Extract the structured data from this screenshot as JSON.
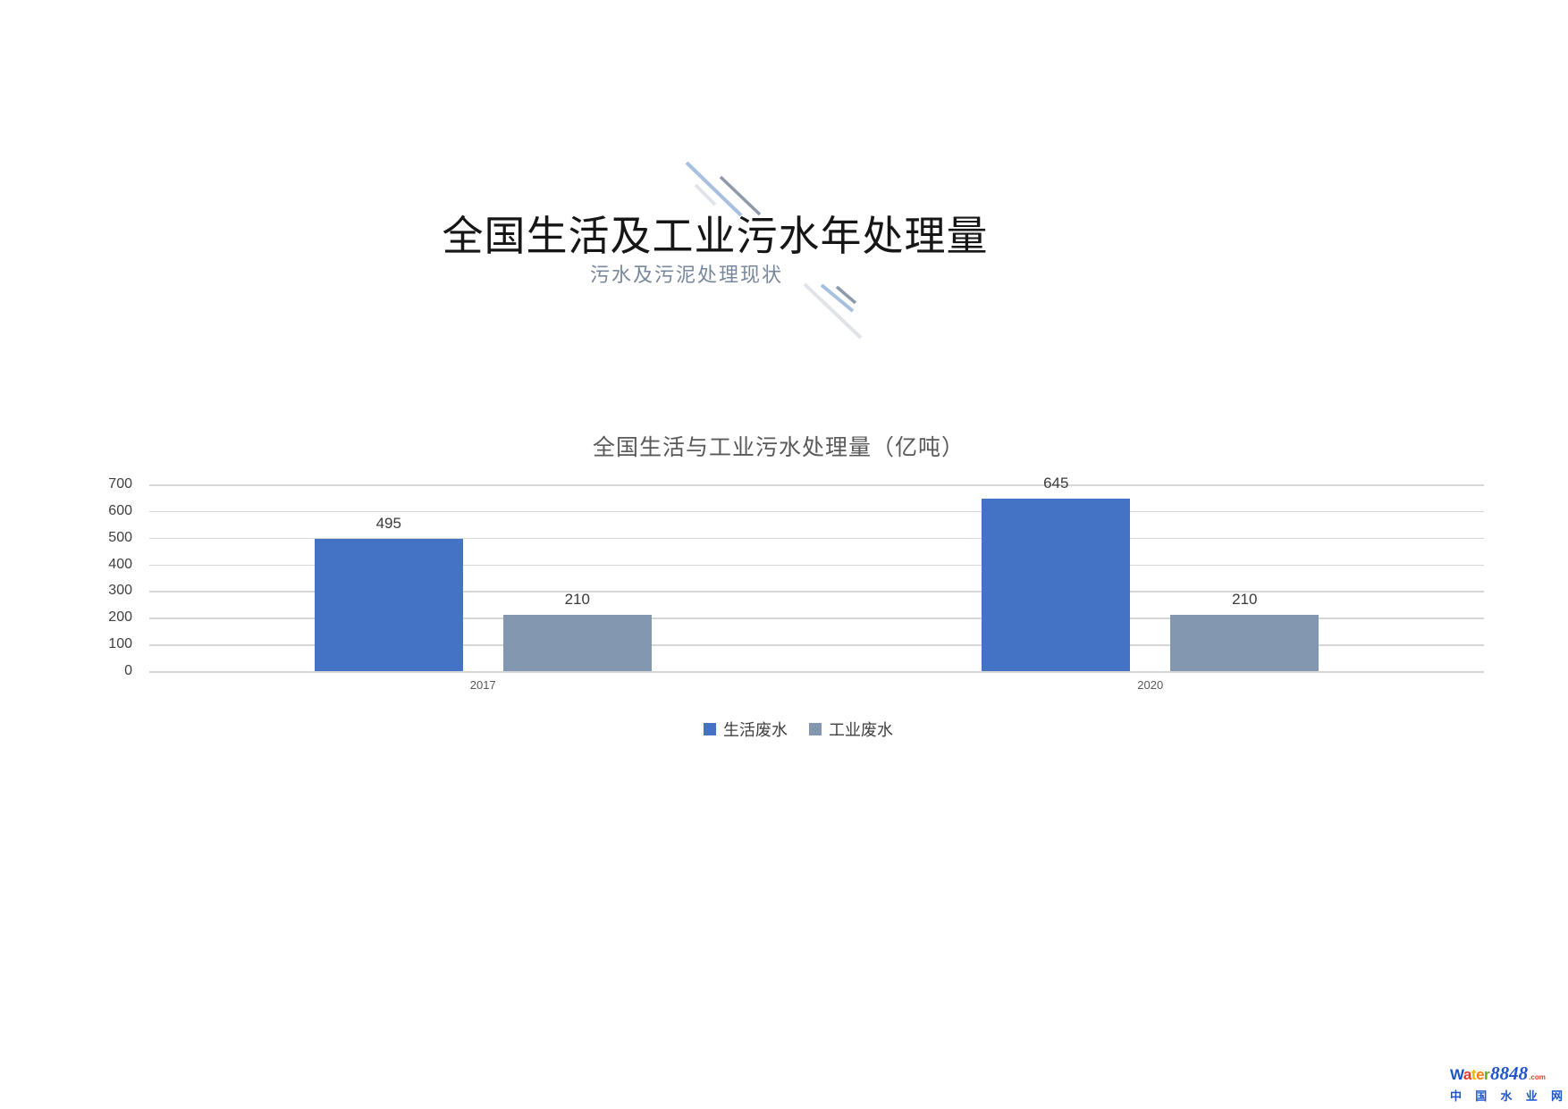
{
  "slide": {
    "title": "全国生活及工业污水年处理量",
    "subtitle": "污水及污泥处理现状"
  },
  "chart_data": {
    "type": "bar",
    "title": "全国生活与工业污水处理量（亿吨）",
    "categories": [
      "2017",
      "2020"
    ],
    "series": [
      {
        "name": "生活废水",
        "color": "#4472C4",
        "values": [
          495,
          645
        ]
      },
      {
        "name": "工业废水",
        "color": "#8497B0",
        "values": [
          210,
          210
        ]
      }
    ],
    "xlabel": "",
    "ylabel": "",
    "ylim": [
      0,
      700
    ],
    "yticks": [
      700,
      600,
      500,
      400,
      300,
      200,
      100,
      0
    ],
    "grid": true,
    "legend_position": "bottom",
    "value_labels_shown": true
  },
  "decor": {
    "accent_blue": "#a7c0e0",
    "accent_gray": "#8e99a9",
    "accent_pale": "#e0e4e9"
  },
  "watermark": {
    "brand_letters": [
      {
        "ch": "W",
        "color": "#1f55c8"
      },
      {
        "ch": "a",
        "color": "#e23b2e"
      },
      {
        "ch": "t",
        "color": "#f3b400"
      },
      {
        "ch": "e",
        "color": "#f07d00"
      },
      {
        "ch": "r",
        "color": "#69a820"
      }
    ],
    "brand_number": "8848",
    "brand_number_color": "#1f55c8",
    "brand_tld": ".com",
    "brand_tld_color": "#e23b2e",
    "brand_cn": "中国水业网",
    "brand_cn_color": "#1f55c8"
  }
}
